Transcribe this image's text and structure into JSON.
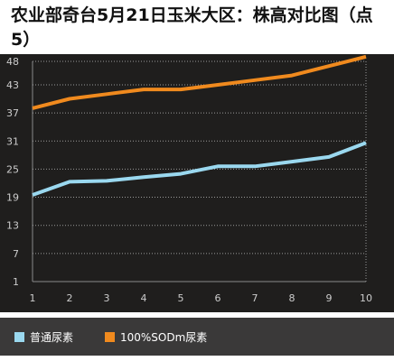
{
  "chart_data": {
    "type": "line",
    "title": "农业部奇台5月21日玉米大区：株高对比图（点5）",
    "x": [
      1,
      2,
      3,
      4,
      5,
      6,
      7,
      8,
      9,
      10
    ],
    "x_ticks": [
      "1",
      "2",
      "3",
      "4",
      "5",
      "6",
      "7",
      "8",
      "9",
      "10"
    ],
    "y_ticks": [
      1,
      7,
      13,
      19,
      25,
      31,
      37,
      43,
      48
    ],
    "ylim": [
      1,
      48
    ],
    "grid": "horizontal dotted",
    "legend_position": "bottom",
    "series": [
      {
        "name": "普通尿素",
        "color": "#9ad8ef",
        "values": [
          19.5,
          22.3,
          22.5,
          23.3,
          24.0,
          25.6,
          25.6,
          26.6,
          27.6,
          30.6
        ]
      },
      {
        "name": "100%SODm尿素",
        "color": "#f08a1e",
        "values": [
          38.0,
          40.0,
          41.0,
          42.0,
          42.0,
          43.0,
          44.0,
          45.0,
          47.0,
          49.0
        ]
      }
    ]
  },
  "colors": {
    "plot_background": "#1f1e1d",
    "legend_background": "#3a3939",
    "axis_text": "#cccccc",
    "grid": "#9a9a9a"
  }
}
